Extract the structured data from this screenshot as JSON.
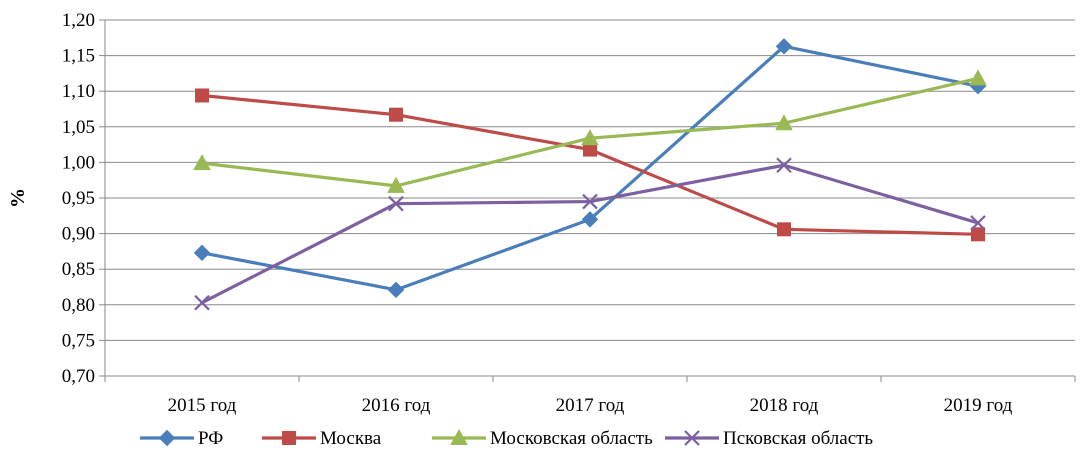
{
  "chart_data": {
    "type": "line",
    "title": "",
    "xlabel": "",
    "ylabel": "%",
    "categories": [
      "2015 год",
      "2016 год",
      "2017 год",
      "2018 год",
      "2019 год"
    ],
    "ylim": [
      0.7,
      1.2
    ],
    "yticks": [
      "0,70",
      "0,75",
      "0,80",
      "0,85",
      "0,90",
      "0,95",
      "1,00",
      "1,05",
      "1,10",
      "1,15",
      "1,20"
    ],
    "grid": "horizontal",
    "legend_position": "bottom",
    "series": [
      {
        "name": "РФ",
        "color": "#4A7EBB",
        "marker": "diamond",
        "values": [
          0.873,
          0.821,
          0.92,
          1.163,
          1.107
        ]
      },
      {
        "name": "Москва",
        "color": "#BE4B48",
        "marker": "square",
        "values": [
          1.094,
          1.067,
          1.018,
          0.906,
          0.899
        ]
      },
      {
        "name": "Московская область",
        "color": "#98B954",
        "marker": "triangle",
        "values": [
          0.999,
          0.967,
          1.034,
          1.055,
          1.118
        ]
      },
      {
        "name": "Псковская область",
        "color": "#7D60A0",
        "marker": "x",
        "values": [
          0.803,
          0.942,
          0.945,
          0.996,
          0.915
        ]
      }
    ]
  }
}
